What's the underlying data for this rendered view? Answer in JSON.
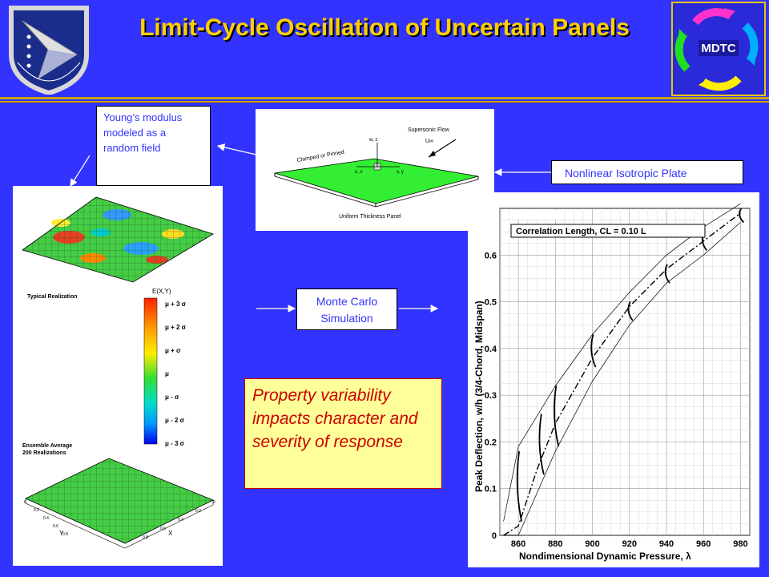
{
  "title": "Limit-Cycle Oscillation of Uncertain Panels",
  "logos": {
    "left_emblem": "air-force-research-laboratory-shield",
    "right_logo_text": "MDTC"
  },
  "colors": {
    "background": "#3333ff",
    "title": "#ffd000",
    "accent_rule": "#c9a200",
    "plate_green": "#33ee33",
    "callout_fill": "#ffff99",
    "callout_text": "#cc0000"
  },
  "labels": {
    "youngs": "Young’s modulus modeled as a random field",
    "nonlinear": "Nonlinear Isotropic Plate",
    "monte_carlo": "Monte Carlo Simulation",
    "property": "Property variability impacts character and severity of response"
  },
  "field_figure": {
    "typical": "Typical Realization",
    "colorbar_title": "E(X,Y)",
    "colorbar_ticks": [
      "μ + 3 σ",
      "μ + 2 σ",
      "μ +  σ",
      "μ",
      "μ -  σ",
      "μ - 2 σ",
      "μ - 3 σ"
    ],
    "ensemble_line1": "Ensemble Average",
    "ensemble_line2": "200 Realizations",
    "axis_y": "Y",
    "axis_x": "X",
    "ticks_left": [
      "0",
      "0.2",
      "0.4",
      "0.6",
      "0.8"
    ],
    "ticks_right": [
      "0",
      "0.2",
      "0.4",
      "0.6",
      "0.8"
    ]
  },
  "plate_figure": {
    "flow": "Supersonic Flow",
    "u_inf": "U∞",
    "clamped": "Clamped or Pinned",
    "wz": "w, z",
    "ux": "u, x",
    "vy": "v, y",
    "uniform": "Uniform Thickness Panel"
  },
  "chart_data": {
    "type": "line",
    "title": "Correlation Length, CL = 0.10 L",
    "xlabel": "Nondimensional Dynamic Pressure, λ",
    "ylabel": "Peak Deflection, w/h (3/4-Chord, Midspan)",
    "xlim": [
      850,
      985
    ],
    "ylim": [
      0,
      0.7
    ],
    "xticks": [
      860,
      880,
      900,
      920,
      940,
      960,
      980
    ],
    "yticks": [
      0,
      0.1,
      0.2,
      0.3,
      0.4,
      0.5,
      0.6
    ],
    "grid": true,
    "series": [
      {
        "style": "mean-dashdot",
        "x": [
          852,
          860,
          870,
          880,
          900,
          920,
          940,
          960,
          980
        ],
        "y": [
          0,
          0.02,
          0.14,
          0.24,
          0.38,
          0.49,
          0.57,
          0.63,
          0.69
        ]
      },
      {
        "style": "upper-bound",
        "x": [
          852,
          860,
          880,
          900,
          920,
          940,
          960,
          980
        ],
        "y": [
          0.03,
          0.19,
          0.32,
          0.43,
          0.52,
          0.6,
          0.66,
          0.71
        ]
      },
      {
        "style": "lower-bound",
        "x": [
          852,
          860,
          870,
          880,
          900,
          920,
          940,
          960,
          980
        ],
        "y": [
          0,
          0,
          0.09,
          0.18,
          0.33,
          0.45,
          0.54,
          0.6,
          0.67
        ]
      }
    ],
    "sample_sections": [
      {
        "x": 860,
        "y": [
          0.03,
          0.18
        ]
      },
      {
        "x": 872,
        "y": [
          0.13,
          0.26
        ]
      },
      {
        "x": 880,
        "y": [
          0.19,
          0.32
        ]
      },
      {
        "x": 900,
        "y": [
          0.36,
          0.43
        ]
      },
      {
        "x": 920,
        "y": [
          0.46,
          0.5
        ]
      },
      {
        "x": 940,
        "y": [
          0.54,
          0.58
        ]
      },
      {
        "x": 960,
        "y": [
          0.61,
          0.65
        ]
      },
      {
        "x": 980,
        "y": [
          0.67,
          0.7
        ]
      }
    ]
  }
}
